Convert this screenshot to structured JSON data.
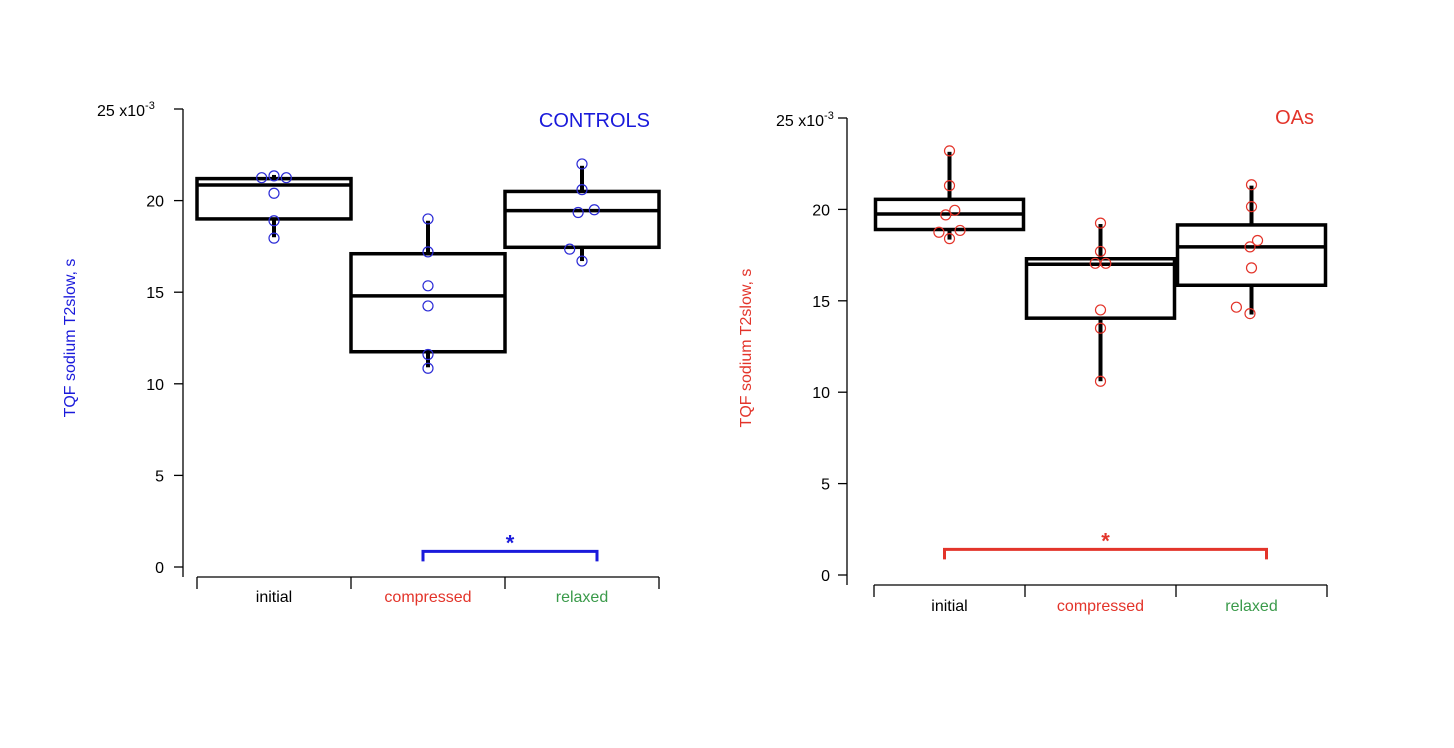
{
  "chart_data": [
    {
      "type": "box",
      "title": "CONTROLS",
      "title_color": "#1a1adb",
      "ylabel": "TQF sodium T2slow,  s",
      "ylabel_color": "#1a1adb",
      "y_scale_label": "25 x10",
      "y_scale_exponent": "-3",
      "ylim": [
        0,
        25
      ],
      "yticks": [
        "0",
        "5",
        "10",
        "15",
        "20"
      ],
      "ytick_values": [
        0,
        5,
        10,
        15,
        20
      ],
      "categories": [
        {
          "label": "initial",
          "color": "#000000"
        },
        {
          "label": "compressed",
          "color": "#e3342a"
        },
        {
          "label": "relaxed",
          "color": "#3a9a4a"
        }
      ],
      "point_color": "#2b2bd6",
      "boxes": [
        {
          "q1": 19.0,
          "median": 20.85,
          "q3": 21.2,
          "whisker_low": 18.0,
          "whisker_high": 21.4
        },
        {
          "q1": 11.75,
          "median": 14.8,
          "q3": 17.1,
          "whisker_low": 10.9,
          "whisker_high": 18.9
        },
        {
          "q1": 17.45,
          "median": 19.45,
          "q3": 20.5,
          "whisker_low": 16.7,
          "whisker_high": 21.9
        }
      ],
      "points": [
        [
          {
            "v": 21.25,
            "j": -0.16
          },
          {
            "v": 21.35,
            "j": 0.0
          },
          {
            "v": 21.25,
            "j": 0.16
          },
          {
            "v": 20.4,
            "j": 0.0
          },
          {
            "v": 18.9,
            "j": 0.0
          },
          {
            "v": 17.95,
            "j": 0.0
          }
        ],
        [
          {
            "v": 19.0,
            "j": 0.0
          },
          {
            "v": 17.2,
            "j": 0.0
          },
          {
            "v": 15.35,
            "j": 0.0
          },
          {
            "v": 14.25,
            "j": 0.0
          },
          {
            "v": 11.6,
            "j": 0.0
          },
          {
            "v": 10.85,
            "j": 0.0
          }
        ],
        [
          {
            "v": 22.0,
            "j": 0.0
          },
          {
            "v": 20.6,
            "j": 0.0
          },
          {
            "v": 19.5,
            "j": 0.16
          },
          {
            "v": 19.35,
            "j": -0.05
          },
          {
            "v": 17.35,
            "j": -0.16
          },
          {
            "v": 16.7,
            "j": 0.0
          }
        ]
      ],
      "significance": {
        "from": 1,
        "to": 2,
        "label": "*",
        "color": "#1a1adb",
        "level": 0.85
      }
    },
    {
      "type": "box",
      "title": "OAs",
      "title_color": "#e3342a",
      "ylabel": "TQF sodium T2slow, s",
      "ylabel_color": "#e3342a",
      "y_scale_label": "25 x10",
      "y_scale_exponent": "-3",
      "ylim": [
        0,
        25
      ],
      "yticks": [
        "0",
        "5",
        "10",
        "15",
        "20"
      ],
      "ytick_values": [
        0,
        5,
        10,
        15,
        20
      ],
      "categories": [
        {
          "label": "initial",
          "color": "#000000"
        },
        {
          "label": "compressed",
          "color": "#e3342a"
        },
        {
          "label": "relaxed",
          "color": "#3a9a4a"
        }
      ],
      "point_color": "#e3342a",
      "boxes": [
        {
          "q1": 18.9,
          "median": 19.75,
          "q3": 20.55,
          "whisker_low": 18.35,
          "whisker_high": 23.15
        },
        {
          "q1": 14.05,
          "median": 17.0,
          "q3": 17.3,
          "whisker_low": 10.6,
          "whisker_high": 19.2
        },
        {
          "q1": 15.85,
          "median": 17.95,
          "q3": 19.15,
          "whisker_low": 14.25,
          "whisker_high": 21.3
        }
      ],
      "points": [
        [
          {
            "v": 23.2,
            "j": 0.0
          },
          {
            "v": 21.3,
            "j": 0.0
          },
          {
            "v": 19.95,
            "j": 0.07
          },
          {
            "v": 19.7,
            "j": -0.05
          },
          {
            "v": 18.85,
            "j": 0.14
          },
          {
            "v": 18.75,
            "j": -0.14
          },
          {
            "v": 18.4,
            "j": 0.0
          }
        ],
        [
          {
            "v": 19.25,
            "j": 0.0
          },
          {
            "v": 17.7,
            "j": 0.0
          },
          {
            "v": 17.05,
            "j": -0.07
          },
          {
            "v": 17.05,
            "j": 0.07
          },
          {
            "v": 14.5,
            "j": 0.0
          },
          {
            "v": 13.5,
            "j": 0.0
          },
          {
            "v": 10.6,
            "j": 0.0
          }
        ],
        [
          {
            "v": 21.35,
            "j": 0.0
          },
          {
            "v": 20.15,
            "j": 0.0
          },
          {
            "v": 18.3,
            "j": 0.08
          },
          {
            "v": 17.95,
            "j": -0.02
          },
          {
            "v": 16.8,
            "j": 0.0
          },
          {
            "v": 14.65,
            "j": -0.2
          },
          {
            "v": 14.3,
            "j": -0.02
          }
        ]
      ],
      "significance": {
        "from": 0,
        "to": 2,
        "label": "*",
        "color": "#e3342a",
        "level": 1.4
      }
    }
  ]
}
